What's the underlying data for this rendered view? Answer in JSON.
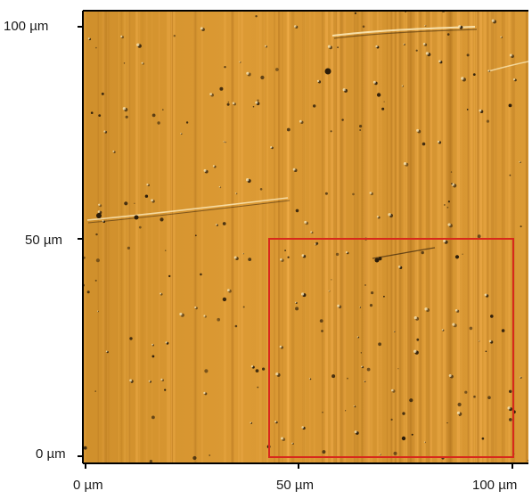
{
  "image": {
    "description_kind": "AFM surface micrograph",
    "colors": {
      "base": "#d8962f",
      "stripe_light": "#f0ad4a",
      "stripe_dark": "#b87a22",
      "defect_dark": "#2a1c0a",
      "defect_light": "#fff2c8",
      "roi_box": "#d8281c",
      "axis": "#000000"
    }
  },
  "axes": {
    "y_labels": [
      "100 µm",
      "50 µm",
      "0 µm"
    ],
    "x_labels": [
      "0 µm",
      "50 µm",
      "100 µm"
    ]
  },
  "roi": {
    "x_range_um": [
      42,
      97
    ],
    "y_range_um": [
      0,
      50
    ]
  }
}
